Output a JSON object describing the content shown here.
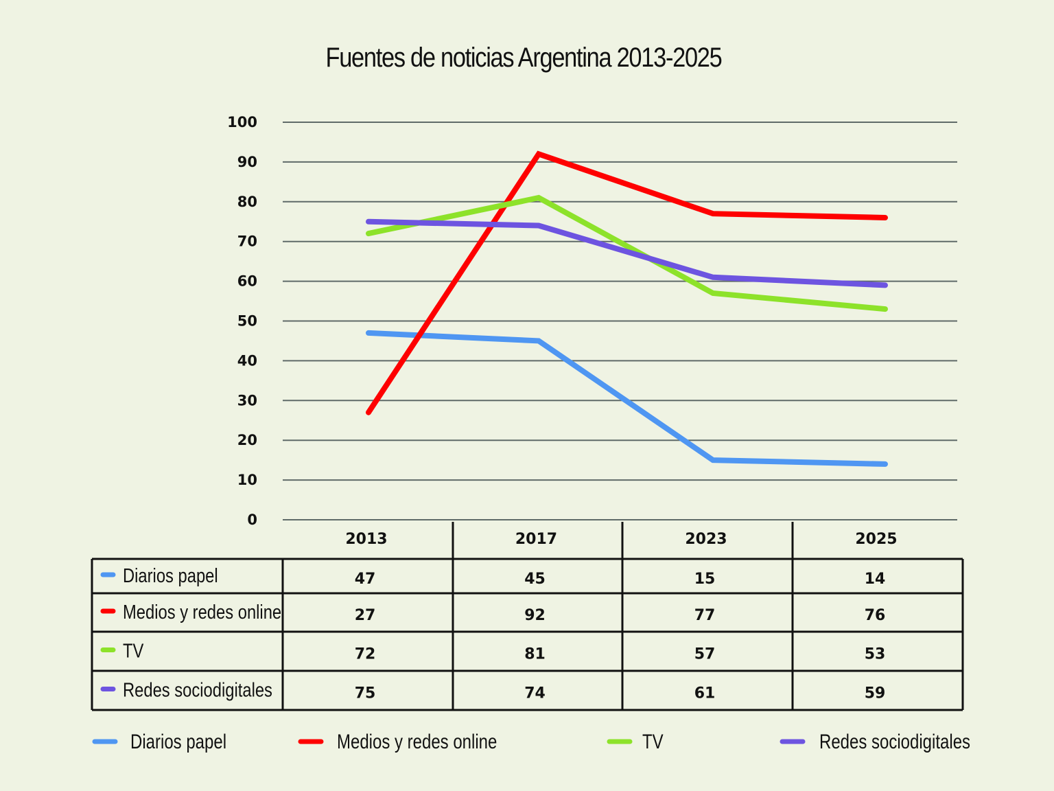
{
  "chart_data": {
    "type": "line",
    "title": "Fuentes de noticias Argentina 2013-2025",
    "xlabel": "",
    "ylabel": "",
    "categories": [
      "2013",
      "2017",
      "2023",
      "2025"
    ],
    "ylim": [
      0,
      100
    ],
    "yticks": [
      "0",
      "10",
      "20",
      "30",
      "40",
      "50",
      "60",
      "70",
      "80",
      "90",
      "100"
    ],
    "grid": true,
    "legend_position": "bottom",
    "data_table": true,
    "series": [
      {
        "name": "Diarios papel",
        "color": "#4f96f2",
        "values": [
          47,
          45,
          15,
          14
        ]
      },
      {
        "name": "Medios y redes online",
        "color": "#fe0000",
        "values": [
          27,
          92,
          77,
          76
        ]
      },
      {
        "name": "TV",
        "color": "#8de22a",
        "values": [
          72,
          81,
          57,
          53
        ]
      },
      {
        "name": "Redes sociodigitales",
        "color": "#6d54e0",
        "values": [
          75,
          74,
          61,
          59
        ]
      }
    ]
  },
  "colors": {
    "background": "#eff3e3",
    "grid": "#5f6a68",
    "table_border": "#111111"
  }
}
